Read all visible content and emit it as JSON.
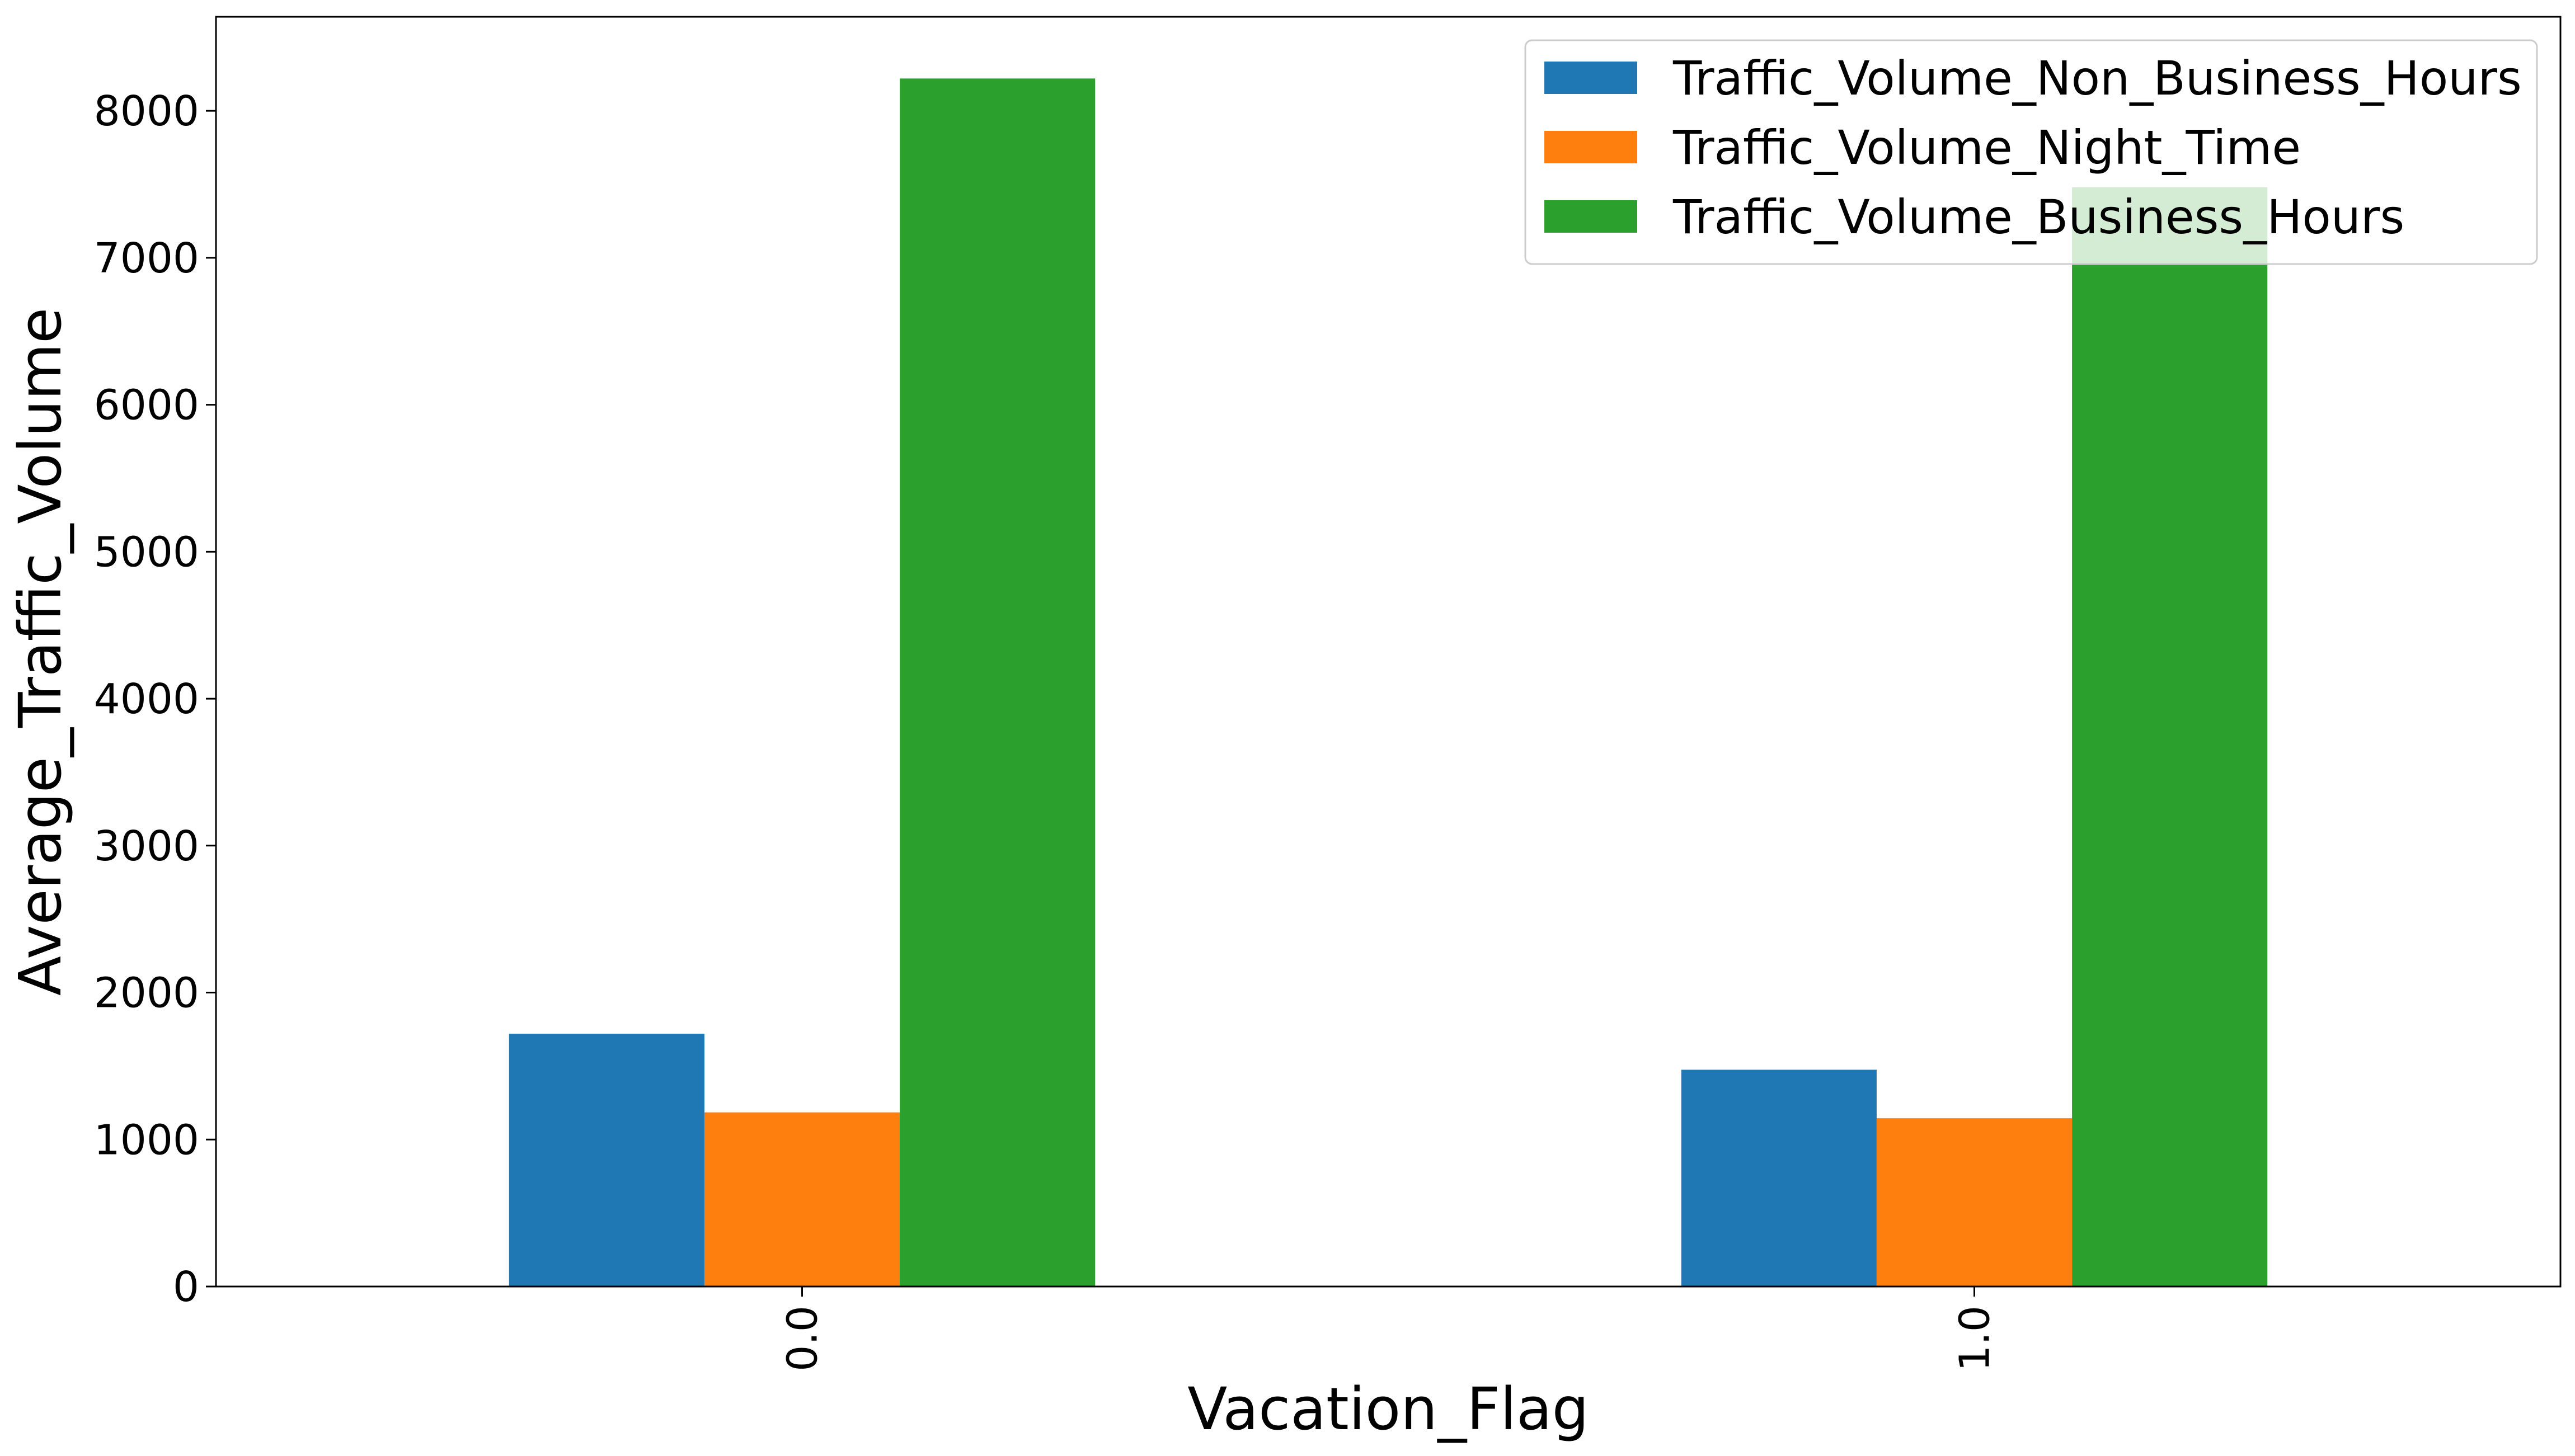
{
  "chart_data": {
    "type": "bar",
    "categories": [
      "0.0",
      "1.0"
    ],
    "series": [
      {
        "name": "Traffic_Volume_Non_Business_Hours",
        "values": [
          1720,
          1475
        ],
        "color": "#1f77b4"
      },
      {
        "name": "Traffic_Volume_Night_Time",
        "values": [
          1185,
          1145
        ],
        "color": "#ff7f0e"
      },
      {
        "name": "Traffic_Volume_Business_Hours",
        "values": [
          8220,
          7480
        ],
        "color": "#2ca02c"
      }
    ],
    "title": "",
    "xlabel": "Vacation_Flag",
    "ylabel": "Average_Traffic_Volume",
    "ylim": [
      0,
      8640
    ],
    "yticks": [
      0,
      1000,
      2000,
      3000,
      4000,
      5000,
      6000,
      7000,
      8000
    ],
    "grid": false,
    "legend_position": "top-right"
  }
}
